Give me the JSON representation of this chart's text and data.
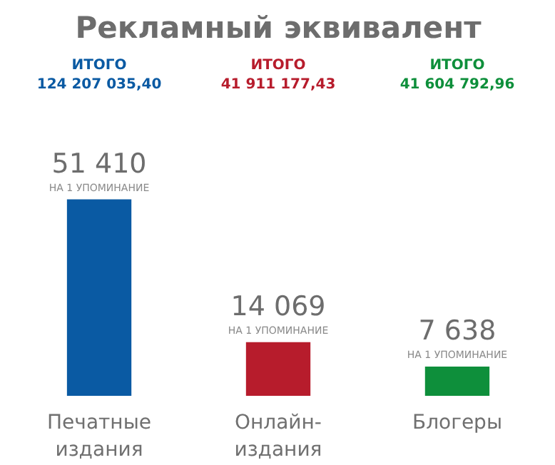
{
  "chart_data": {
    "type": "bar",
    "title": "Рекламный эквивалент",
    "categories": [
      "Печатные\nиздания",
      "Онлайн-\nиздания",
      "Блогеры"
    ],
    "values": [
      51410,
      14069,
      7638
    ],
    "colors": [
      "#0a5aa3",
      "#b71c2c",
      "#0e8f3b"
    ],
    "value_labels": [
      "51 410\nНА 1 УПОМИНАНИЕ",
      "14 069\nНА 1 УПОМИНАНИЕ",
      "7 638\nНА 1 УПОМИНАНИЕ"
    ],
    "annotations": [
      "ИТОГО\n124 207 035,40",
      "ИТОГО\n41 911 177,43",
      "ИТОГО\n41 604 792,96"
    ],
    "grid": false,
    "tick_labels": "x"
  }
}
